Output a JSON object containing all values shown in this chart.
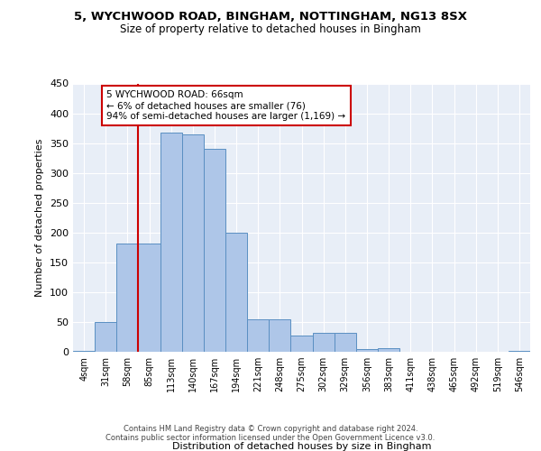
{
  "title1": "5, WYCHWOOD ROAD, BINGHAM, NOTTINGHAM, NG13 8SX",
  "title2": "Size of property relative to detached houses in Bingham",
  "xlabel": "Distribution of detached houses by size in Bingham",
  "ylabel": "Number of detached properties",
  "bin_labels": [
    "4sqm",
    "31sqm",
    "58sqm",
    "85sqm",
    "113sqm",
    "140sqm",
    "167sqm",
    "194sqm",
    "221sqm",
    "248sqm",
    "275sqm",
    "302sqm",
    "329sqm",
    "356sqm",
    "383sqm",
    "411sqm",
    "438sqm",
    "465sqm",
    "492sqm",
    "519sqm",
    "546sqm"
  ],
  "bar_values": [
    2,
    50,
    181,
    181,
    367,
    365,
    340,
    199,
    55,
    54,
    27,
    32,
    32,
    5,
    6,
    0,
    0,
    0,
    0,
    0,
    2
  ],
  "bar_color": "#aec6e8",
  "bar_edgecolor": "#5a8fc2",
  "vline_x": 2.5,
  "vline_color": "#cc0000",
  "annotation_text": "5 WYCHWOOD ROAD: 66sqm\n← 6% of detached houses are smaller (76)\n94% of semi-detached houses are larger (1,169) →",
  "annotation_box_color": "#ffffff",
  "annotation_box_edgecolor": "#cc0000",
  "footnote": "Contains HM Land Registry data © Crown copyright and database right 2024.\nContains public sector information licensed under the Open Government Licence v3.0.",
  "ylim": [
    0,
    450
  ],
  "yticks": [
    0,
    50,
    100,
    150,
    200,
    250,
    300,
    350,
    400,
    450
  ],
  "bg_color": "#e8eef7",
  "fig_bg_color": "#ffffff"
}
